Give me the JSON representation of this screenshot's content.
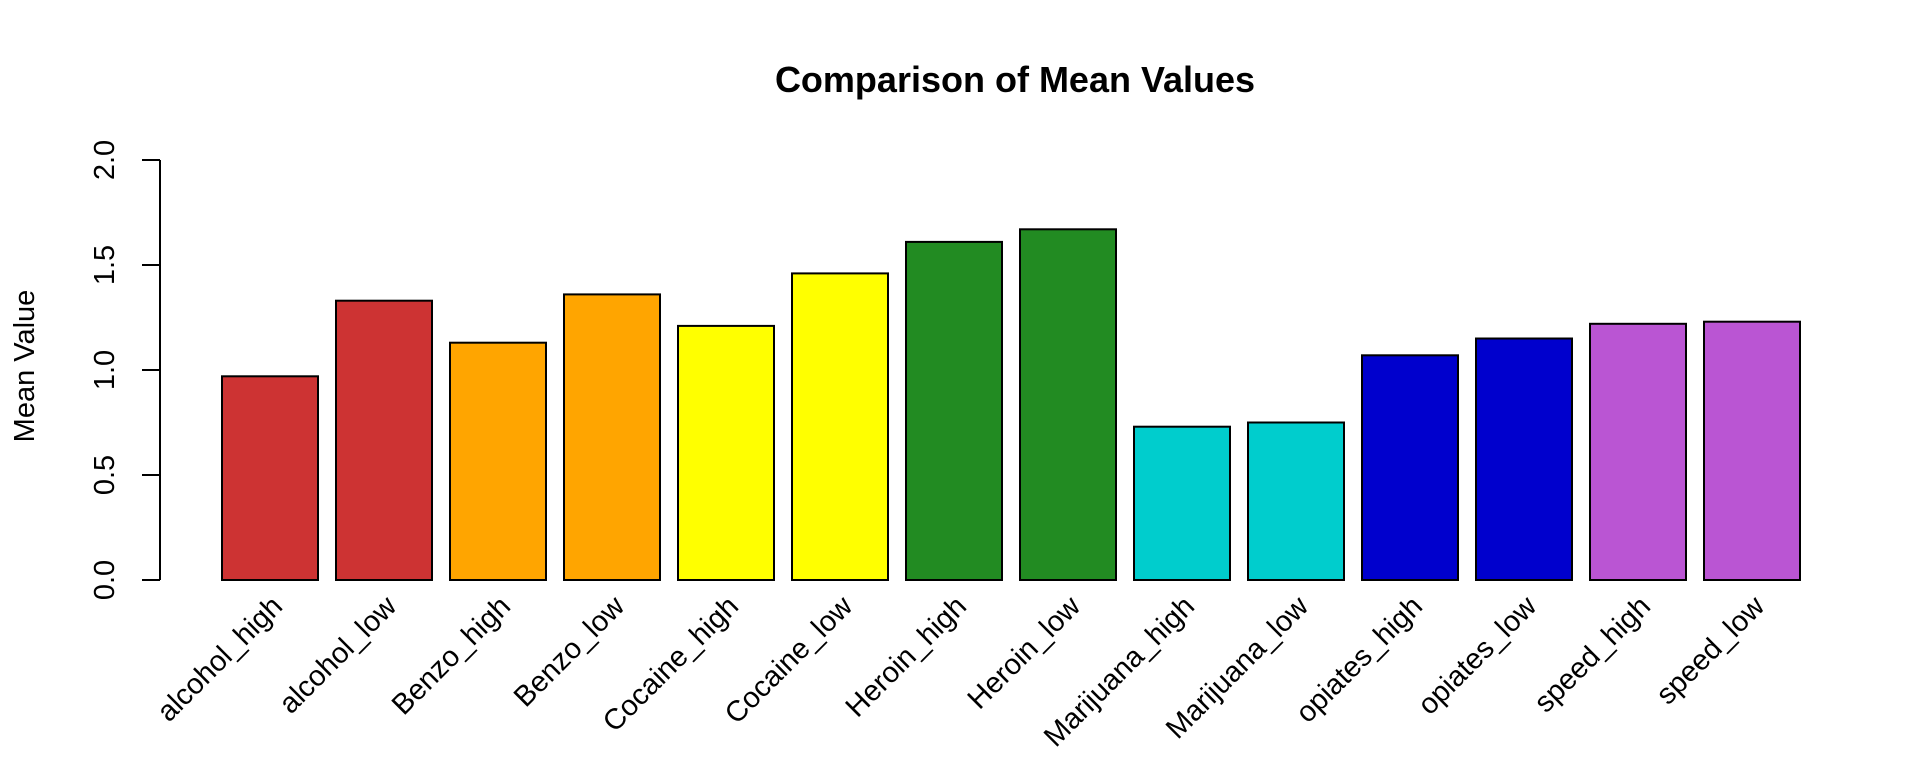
{
  "chart_data": {
    "type": "bar",
    "title": "Comparison of Mean Values",
    "xlabel": "",
    "ylabel": "Mean Value",
    "ylim": [
      0,
      2
    ],
    "yticks": [
      0.0,
      0.5,
      1.0,
      1.5,
      2.0
    ],
    "ytick_labels": [
      "0.0",
      "0.5",
      "1.0",
      "1.5",
      "2.0"
    ],
    "grid": false,
    "legend": "none",
    "categories": [
      "alcohol_high",
      "alcohol_low",
      "Benzo_high",
      "Benzo_low",
      "Cocaine_high",
      "Cocaine_low",
      "Heroin_high",
      "Heroin_low",
      "Marijuana_high",
      "Marijuana_low",
      "opiates_high",
      "opiates_low",
      "speed_high",
      "speed_low"
    ],
    "values": [
      0.97,
      1.33,
      1.13,
      1.36,
      1.21,
      1.46,
      1.61,
      1.67,
      0.73,
      0.75,
      1.07,
      1.15,
      1.22,
      1.23
    ],
    "colors": [
      "#CD3333",
      "#CD3333",
      "#FFA500",
      "#FFA500",
      "#FFFF00",
      "#FFFF00",
      "#228B22",
      "#228B22",
      "#00CDCD",
      "#00CDCD",
      "#0000CD",
      "#0000CD",
      "#BA55D3",
      "#BA55D3"
    ]
  }
}
